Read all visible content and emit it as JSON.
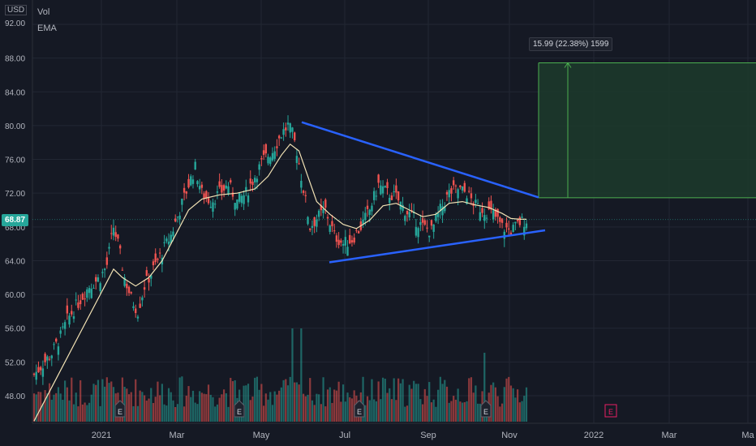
{
  "price_scale": {
    "currency": "USD",
    "top_label": "92.00"
  },
  "indicators": [
    "Vol",
    "EMA"
  ],
  "last_price": {
    "label": "68.87",
    "value": 68.87,
    "color": "#26a69a"
  },
  "measure": {
    "label": "15.99 (22.38%) 1599",
    "from": 71.45,
    "to": 87.44
  },
  "colors": {
    "up": "#26a69a",
    "down": "#ef5350",
    "ema": "#f3e3b5",
    "trendline": "#2962ff",
    "background": "#151924",
    "grid": "#222733",
    "axis_text": "#b2b5be",
    "measure_fill": "#1c3b2b",
    "measure_border": "#4caf50"
  },
  "events": {
    "label": "E",
    "upcoming_color": "#e91e63"
  },
  "chart_data": {
    "type": "candlestick",
    "y_ticks": [
      92,
      88,
      84,
      80,
      76,
      72,
      68,
      64,
      60,
      56,
      52,
      48
    ],
    "y_tick_labels": [
      "92.00",
      "88.00",
      "84.00",
      "80.00",
      "76.00",
      "72.00",
      "68.00",
      "64.00",
      "60.00",
      "56.00",
      "52.00",
      "48.00"
    ],
    "ylim": [
      44.5,
      93.5
    ],
    "x_labels": [
      "2021",
      "Mar",
      "May",
      "Jul",
      "Sep",
      "Nov",
      "2022",
      "Mar",
      "Ma"
    ],
    "candles_t": [
      0,
      1,
      2,
      3,
      4,
      5,
      6,
      7,
      8,
      9,
      10,
      11,
      12,
      13,
      14,
      15,
      16,
      17,
      18,
      19,
      20,
      21,
      22,
      23,
      24,
      25,
      26,
      27,
      28,
      29,
      30,
      31,
      32,
      33,
      34,
      35,
      36,
      37,
      38,
      39,
      40,
      41,
      42,
      43,
      44,
      45,
      46,
      47,
      48,
      49,
      50,
      51,
      52,
      53,
      54,
      55,
      56,
      57,
      58,
      59,
      60,
      61,
      62,
      63,
      64,
      65,
      66,
      67,
      68,
      69,
      70,
      71,
      72,
      73,
      74,
      75,
      76,
      77,
      78,
      79,
      80,
      81,
      82,
      83,
      84,
      85,
      86,
      87,
      88,
      89,
      90,
      91,
      92,
      93,
      94,
      95,
      96,
      97,
      98,
      99,
      100,
      101,
      102,
      103,
      104,
      105,
      106,
      107,
      108,
      109,
      110,
      111,
      112,
      113,
      114,
      115,
      116,
      117,
      118,
      119,
      120,
      121,
      122,
      123,
      124,
      125,
      126,
      127,
      128,
      129,
      130,
      131,
      132,
      133,
      134,
      135,
      136,
      137,
      138,
      139,
      140,
      141,
      142,
      143,
      144,
      145,
      146,
      147,
      148,
      149,
      150,
      151,
      152,
      153,
      154,
      155,
      156,
      157,
      158,
      159,
      160,
      161,
      162,
      163,
      164,
      165,
      166,
      167,
      168,
      169,
      170,
      171,
      172,
      173,
      174,
      175,
      176,
      177,
      178,
      179,
      180,
      181,
      182,
      183,
      184,
      185,
      186,
      187,
      188,
      189,
      190,
      191,
      192,
      193,
      194,
      195,
      196,
      197,
      198,
      199,
      200,
      201,
      202,
      203,
      204,
      205,
      206,
      207,
      208,
      209,
      210,
      211,
      212,
      213,
      214,
      215,
      216,
      217,
      218,
      219,
      220,
      221,
      222,
      223
    ],
    "close_path": [
      [
        0,
        50.5
      ],
      [
        8,
        53
      ],
      [
        12,
        55
      ],
      [
        15,
        57
      ],
      [
        20,
        59
      ],
      [
        25,
        61
      ],
      [
        30,
        62
      ],
      [
        33,
        63.5
      ],
      [
        36,
        68
      ],
      [
        38,
        66
      ],
      [
        41,
        62
      ],
      [
        44,
        59.5
      ],
      [
        47,
        58
      ],
      [
        50,
        61
      ],
      [
        54,
        63
      ],
      [
        58,
        65
      ],
      [
        62,
        67
      ],
      [
        66,
        70
      ],
      [
        70,
        73
      ],
      [
        73,
        75
      ],
      [
        76,
        72
      ],
      [
        80,
        71
      ],
      [
        84,
        72
      ],
      [
        88,
        73
      ],
      [
        92,
        71
      ],
      [
        96,
        72
      ],
      [
        100,
        74
      ],
      [
        104,
        76
      ],
      [
        108,
        77
      ],
      [
        112,
        79
      ],
      [
        115,
        80
      ],
      [
        117,
        79
      ],
      [
        119,
        77
      ],
      [
        121,
        74
      ],
      [
        123,
        71
      ],
      [
        125,
        68
      ],
      [
        128,
        69
      ],
      [
        132,
        70
      ],
      [
        136,
        67
      ],
      [
        140,
        66
      ],
      [
        144,
        66.5
      ],
      [
        148,
        68
      ],
      [
        152,
        70
      ],
      [
        156,
        73
      ],
      [
        160,
        72
      ],
      [
        164,
        71.5
      ],
      [
        168,
        70
      ],
      [
        172,
        69
      ],
      [
        176,
        68
      ],
      [
        180,
        67.5
      ],
      [
        184,
        70
      ],
      [
        188,
        72
      ],
      [
        192,
        72.5
      ],
      [
        196,
        72
      ],
      [
        200,
        70.5
      ],
      [
        204,
        70
      ],
      [
        208,
        69.5
      ],
      [
        212,
        68
      ],
      [
        216,
        67.5
      ],
      [
        220,
        68.5
      ],
      [
        223,
        68.87
      ]
    ],
    "ema_path": [
      [
        0,
        45
      ],
      [
        10,
        50
      ],
      [
        20,
        55
      ],
      [
        30,
        60
      ],
      [
        36,
        63
      ],
      [
        40,
        62
      ],
      [
        46,
        61
      ],
      [
        52,
        62
      ],
      [
        58,
        64
      ],
      [
        64,
        67
      ],
      [
        70,
        70
      ],
      [
        76,
        71.3
      ],
      [
        84,
        71.8
      ],
      [
        92,
        72
      ],
      [
        100,
        72.5
      ],
      [
        106,
        74
      ],
      [
        112,
        76.5
      ],
      [
        116,
        77.8
      ],
      [
        120,
        77
      ],
      [
        124,
        74
      ],
      [
        128,
        71
      ],
      [
        134,
        69.5
      ],
      [
        140,
        68.3
      ],
      [
        146,
        67.8
      ],
      [
        152,
        68.8
      ],
      [
        158,
        70.5
      ],
      [
        164,
        70.8
      ],
      [
        170,
        70
      ],
      [
        176,
        69.2
      ],
      [
        182,
        69.5
      ],
      [
        188,
        70.8
      ],
      [
        194,
        71
      ],
      [
        200,
        70.6
      ],
      [
        206,
        70.3
      ],
      [
        212,
        69.6
      ],
      [
        216,
        69
      ],
      [
        220,
        68.9
      ],
      [
        223,
        68.9
      ]
    ],
    "volume_seed": 7,
    "trendlines": [
      {
        "from": [
          "May-10",
          80.5
        ],
        "to": [
          "Nov-20",
          71.5
        ]
      },
      {
        "from": [
          "Jun-15",
          64.0
        ],
        "to": [
          "Nov-25",
          67.5
        ]
      }
    ],
    "earnings_dates": [
      "Jan",
      "May",
      "Aug",
      "Oct-late",
      "Jan-2022"
    ],
    "grid": true
  }
}
